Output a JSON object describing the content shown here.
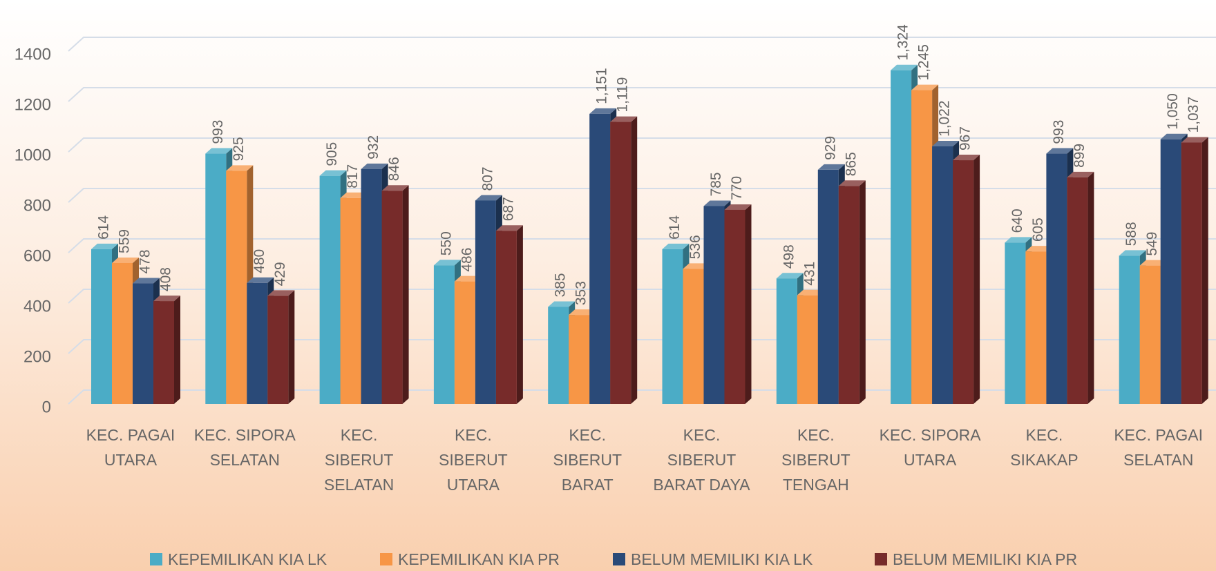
{
  "chart_data": {
    "type": "bar3d",
    "categories": [
      "KEC. PAGAI UTARA",
      "KEC. SIPORA SELATAN",
      "KEC. SIBERUT SELATAN",
      "KEC. SIBERUT UTARA",
      "KEC. SIBERUT BARAT",
      "KEC. SIBERUT BARAT DAYA",
      "KEC. SIBERUT TENGAH",
      "KEC. SIPORA UTARA",
      "KEC. SIKAKAP",
      "KEC. PAGAI SELATAN"
    ],
    "series": [
      {
        "name": "KEPEMILIKAN KIA LK",
        "color": "#4bacc6",
        "values": [
          614,
          993,
          905,
          550,
          385,
          614,
          498,
          1324,
          640,
          588
        ],
        "value_labels": [
          "614",
          "993",
          "905",
          "550",
          "385",
          "614",
          "498",
          "1,324",
          "640",
          "588"
        ]
      },
      {
        "name": "KEPEMILIKAN KIA PR",
        "color": "#f79646",
        "values": [
          559,
          925,
          817,
          486,
          353,
          536,
          431,
          1245,
          605,
          549
        ],
        "value_labels": [
          "559",
          "925",
          "817",
          "486",
          "353",
          "536",
          "431",
          "1,245",
          "605",
          "549"
        ]
      },
      {
        "name": "BELUM MEMILIKI KIA LK",
        "color": "#2a4a78",
        "values": [
          478,
          480,
          932,
          807,
          1151,
          785,
          929,
          1022,
          993,
          1050
        ],
        "value_labels": [
          "478",
          "480",
          "932",
          "807",
          "1,151",
          "785",
          "929",
          "1,022",
          "993",
          "1,050"
        ]
      },
      {
        "name": "BELUM MEMILIKI KIA PR",
        "color": "#772b2a",
        "values": [
          408,
          429,
          846,
          687,
          1119,
          770,
          865,
          967,
          899,
          1037
        ],
        "value_labels": [
          "408",
          "429",
          "846",
          "687",
          "1,119",
          "770",
          "865",
          "967",
          "899",
          "1,037"
        ]
      }
    ],
    "ylim": [
      0,
      1400
    ],
    "yticks": [
      0,
      200,
      400,
      600,
      800,
      1000,
      1200,
      1400
    ],
    "grid": true,
    "legend": "bottom"
  }
}
